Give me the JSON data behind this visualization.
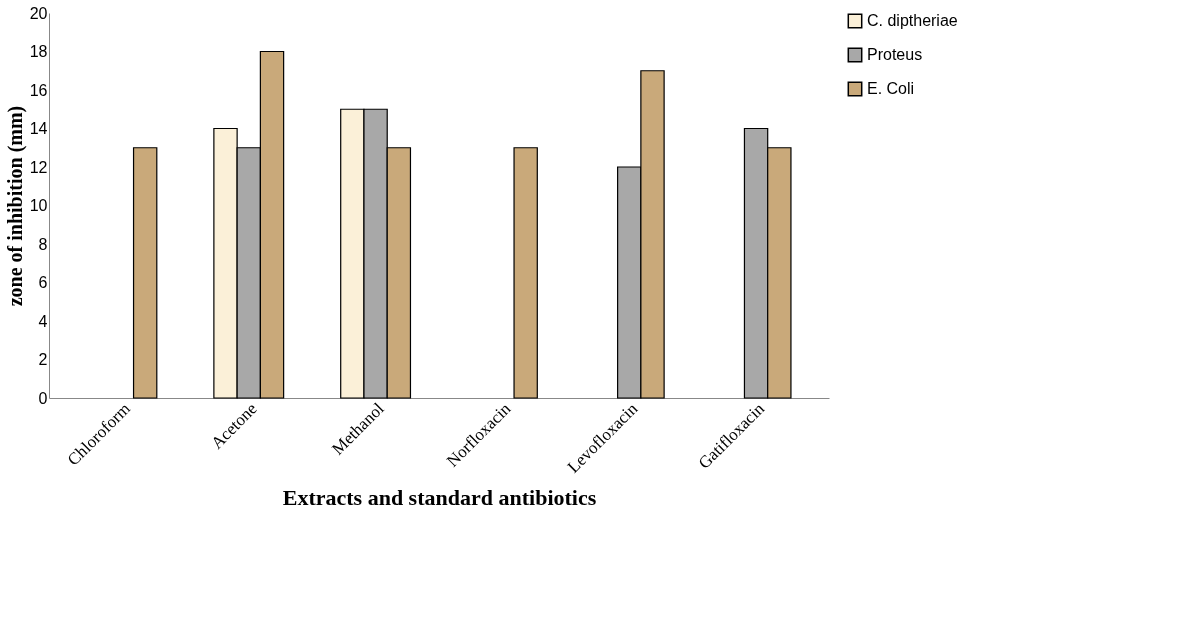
{
  "chart_data": {
    "type": "bar",
    "xlabel": "Extracts and standard antibiotics",
    "ylabel": "zone of inhibition (mm)",
    "categories": [
      "Chloroform",
      "Acetone",
      "Methanol",
      "Norfloxacin",
      "Levofloxacin",
      "Gatifloxacin"
    ],
    "series": [
      {
        "name": "C. diptheriae",
        "color": "#fbf0d8",
        "values": [
          null,
          14,
          15,
          null,
          null,
          null
        ]
      },
      {
        "name": "Proteus",
        "color": "#a8a8a8",
        "values": [
          null,
          13,
          15,
          null,
          12,
          14
        ]
      },
      {
        "name": "E. Coli",
        "color": "#c9a97a",
        "values": [
          13,
          18,
          13,
          13,
          17,
          13
        ]
      }
    ],
    "ylim": [
      0,
      20
    ],
    "yticks": [
      0,
      2,
      4,
      6,
      8,
      10,
      12,
      14,
      16,
      18,
      20
    ],
    "grid": false,
    "legend": "right"
  }
}
